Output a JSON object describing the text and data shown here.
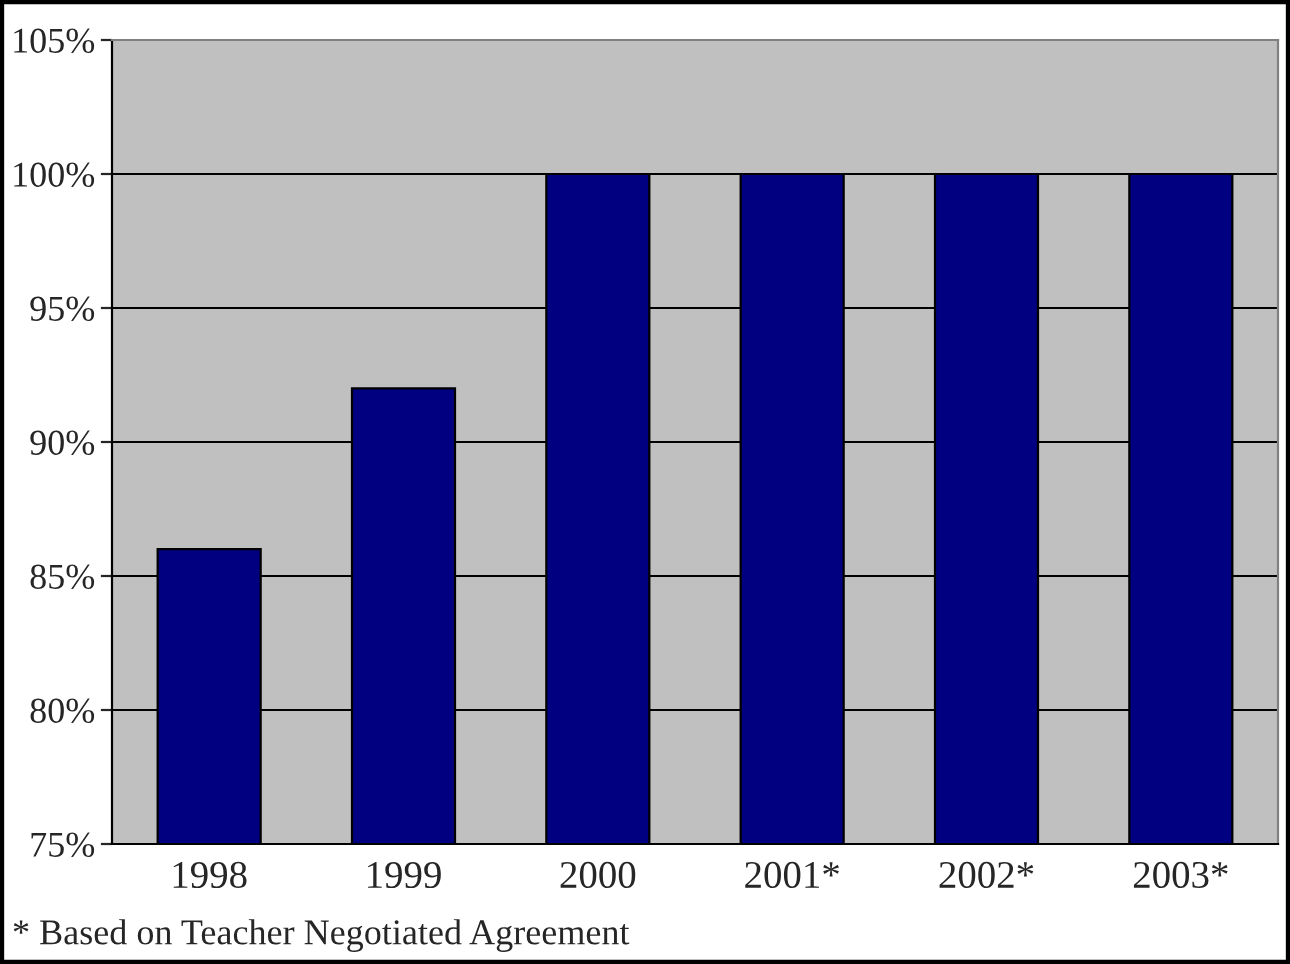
{
  "chart_data": {
    "type": "bar",
    "categories": [
      "1998",
      "1999",
      "2000",
      "2001*",
      "2002*",
      "2003*"
    ],
    "values": [
      86,
      92,
      100,
      100,
      100,
      100
    ],
    "color": "#000080",
    "ylim": [
      75,
      105
    ],
    "yticks": [
      {
        "value": 75,
        "label": "75%"
      },
      {
        "value": 80,
        "label": "80%"
      },
      {
        "value": 85,
        "label": "85%"
      },
      {
        "value": 90,
        "label": "90%"
      },
      {
        "value": 95,
        "label": "95%"
      },
      {
        "value": 100,
        "label": "100%"
      },
      {
        "value": 105,
        "label": "105%"
      }
    ],
    "grid": "y",
    "annotations": [
      "* Based on Teacher Negotiated Agreement"
    ]
  }
}
